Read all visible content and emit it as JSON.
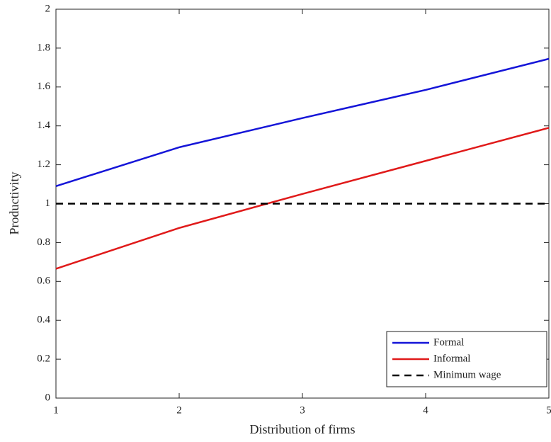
{
  "chart_data": {
    "type": "line",
    "x_label": "Distribution of firms",
    "y_label": "Productivity",
    "x": [
      1,
      2,
      3,
      4,
      5
    ],
    "series": [
      {
        "name": "Formal",
        "color": "#1515d8",
        "dash": false,
        "values": [
          1.09,
          1.29,
          1.44,
          1.585,
          1.745
        ]
      },
      {
        "name": "Informal",
        "color": "#e01a1a",
        "dash": false,
        "values": [
          0.665,
          0.875,
          1.05,
          1.22,
          1.39
        ]
      },
      {
        "name": "Minimum wage",
        "color": "#000000",
        "dash": true,
        "values": [
          1,
          1,
          1,
          1,
          1
        ]
      }
    ],
    "xlim": [
      1,
      5
    ],
    "xticks": [
      1,
      2,
      3,
      4,
      5
    ],
    "ylim": [
      0,
      2
    ],
    "yticks": [
      0,
      0.2,
      0.4,
      0.6,
      0.8,
      1,
      1.2,
      1.4,
      1.6,
      1.8,
      2
    ],
    "grid": false,
    "legend": "lower right"
  }
}
